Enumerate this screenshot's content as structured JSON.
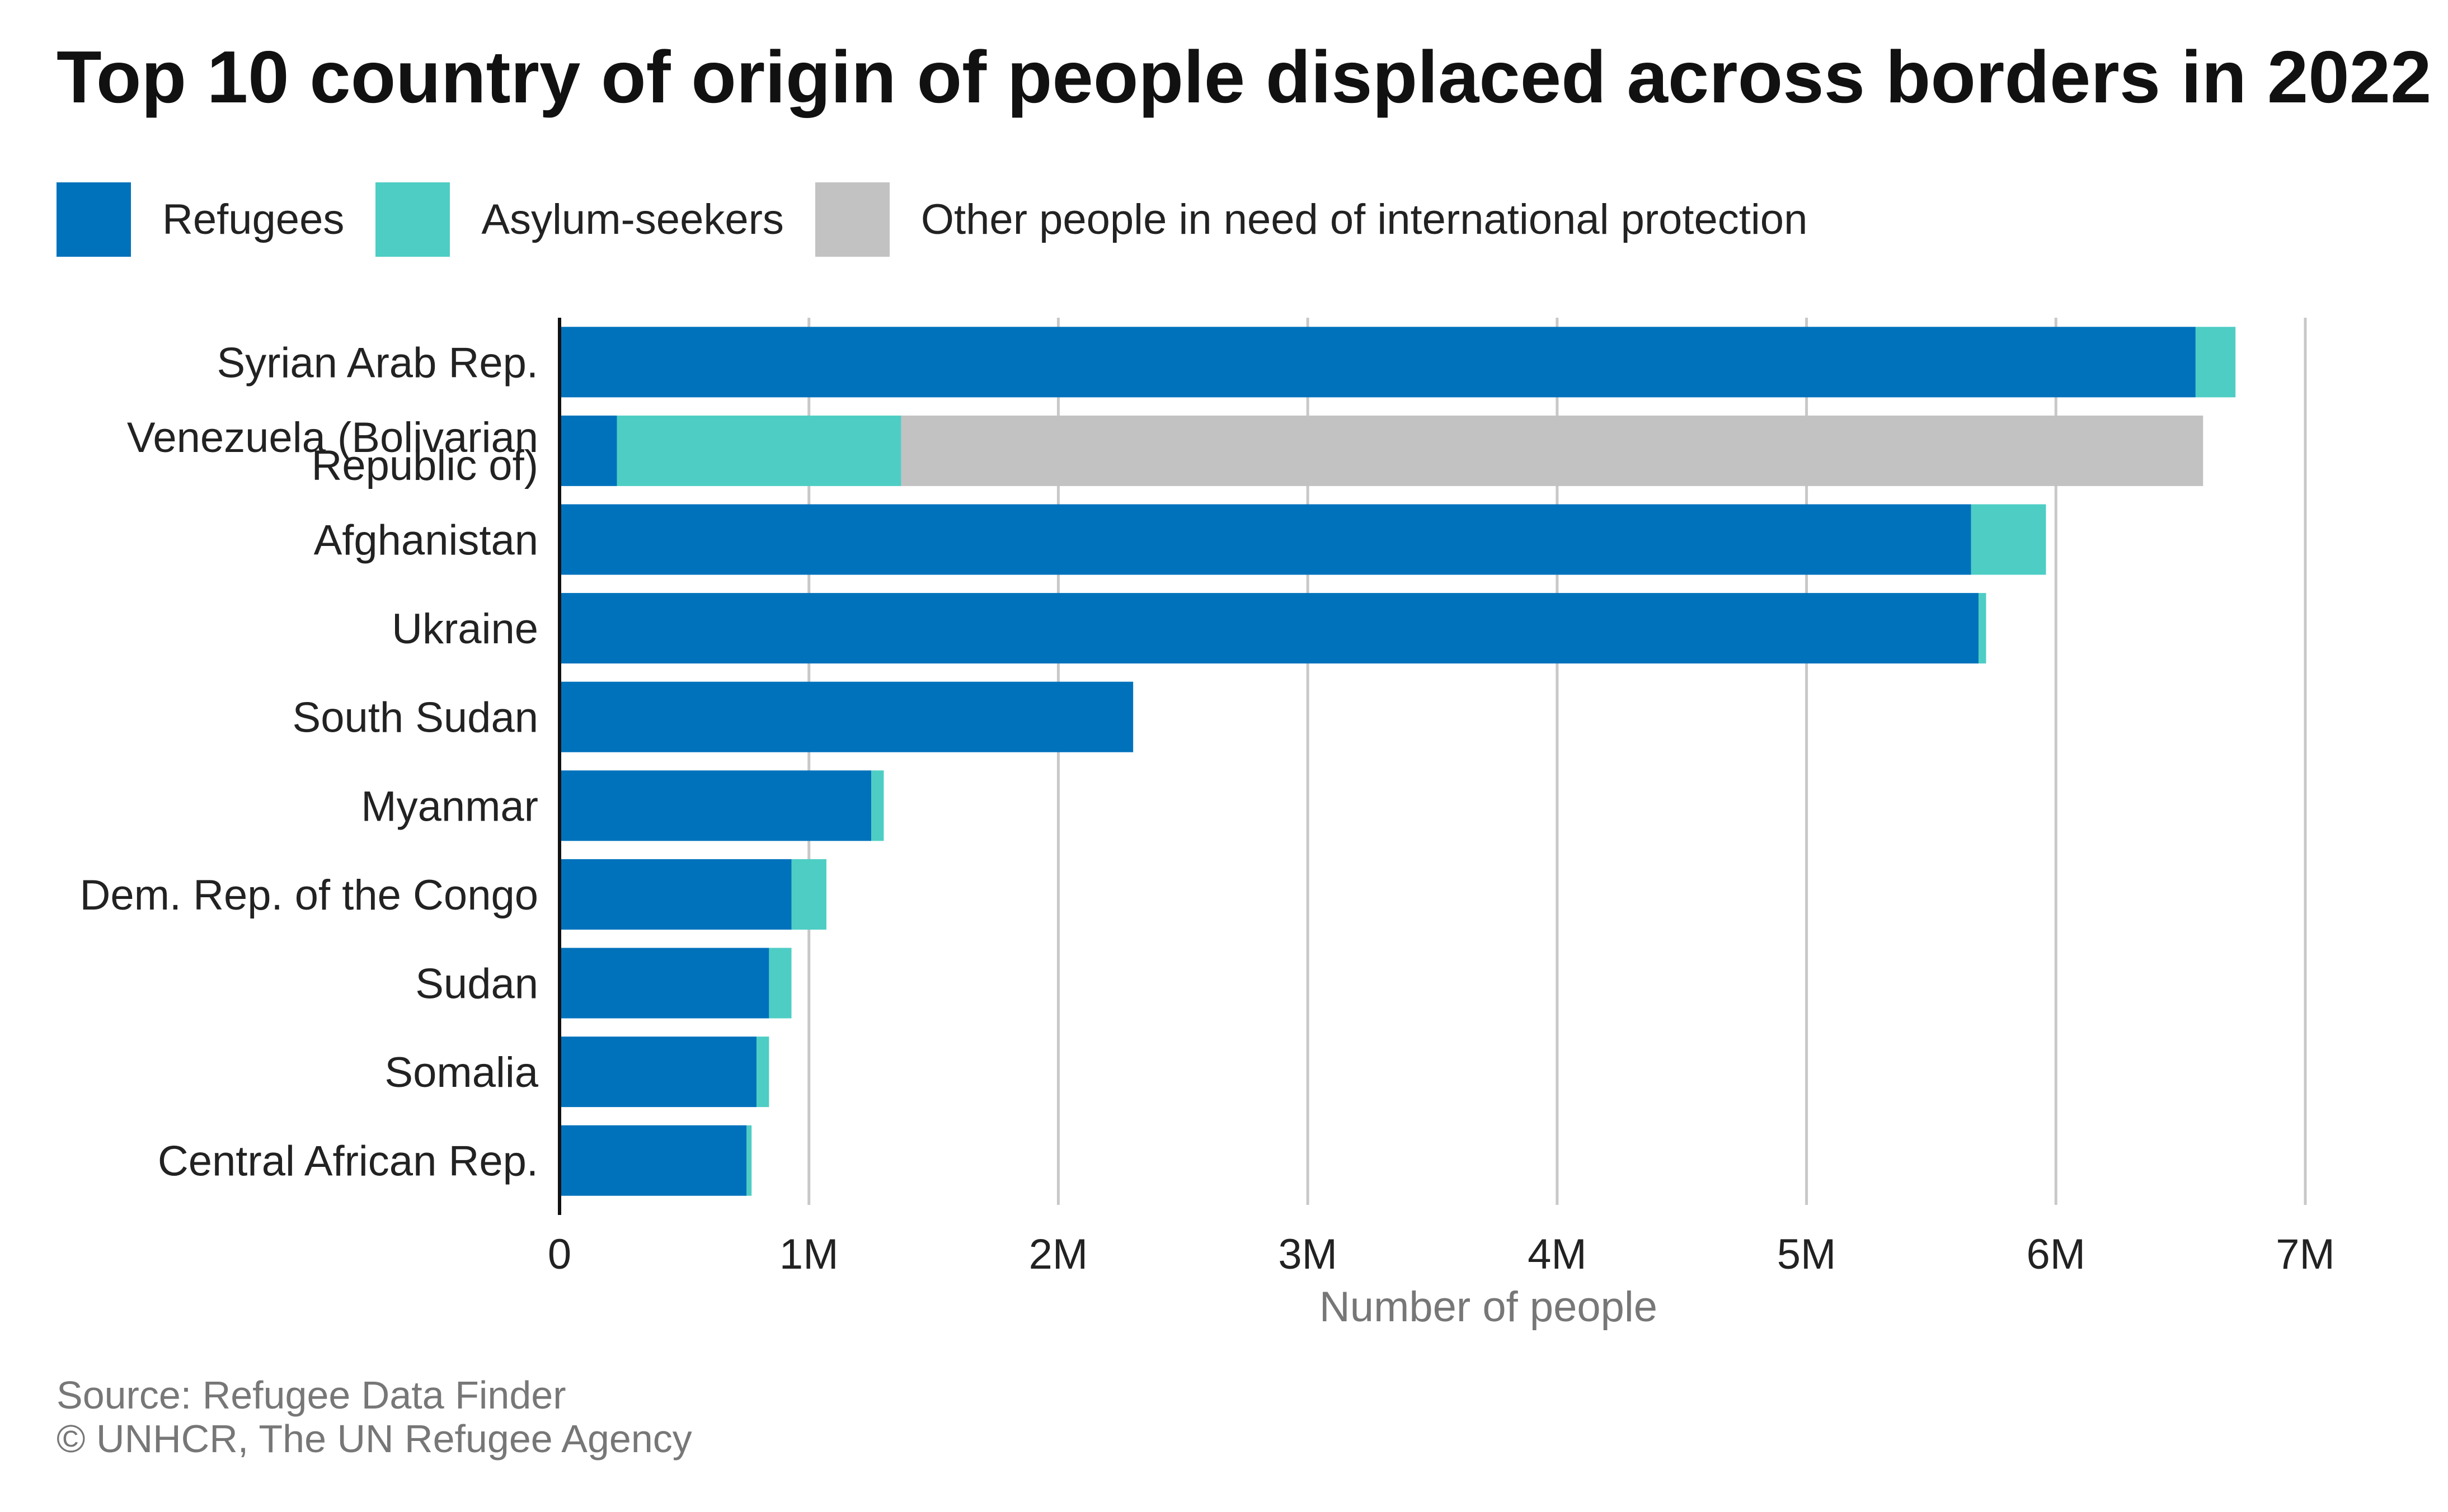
{
  "title": "Top 10 country of origin of people displaced across borders in 2022",
  "legend": [
    {
      "label": "Refugees",
      "color": "#0072bc"
    },
    {
      "label": "Asylum-seekers",
      "color": "#4ecdc4"
    },
    {
      "label": "Other people in need of international protection",
      "color": "#c2c2c2"
    }
  ],
  "footer": {
    "source": "Source: Refugee Data Finder",
    "copyright": "© UNHCR, The UN Refugee Agency"
  },
  "chart_data": {
    "type": "bar",
    "orientation": "horizontal",
    "stacked": true,
    "title": "Top 10 country of origin of people displaced across borders in 2022",
    "xlabel": "Number of people",
    "ylabel": "",
    "xlim": [
      0,
      7000000
    ],
    "x_ticks": [
      0,
      1000000,
      2000000,
      3000000,
      4000000,
      5000000,
      6000000,
      7000000
    ],
    "x_tick_labels": [
      "0",
      "1M",
      "2M",
      "3M",
      "4M",
      "5M",
      "6M",
      "7M"
    ],
    "grid": "vertical",
    "legend_position": "top-left",
    "categories": [
      [
        "Syrian Arab Rep."
      ],
      [
        "Venezuela (Bolivarian",
        "Republic of)"
      ],
      [
        "Afghanistan"
      ],
      [
        "Ukraine"
      ],
      [
        "South Sudan"
      ],
      [
        "Myanmar"
      ],
      [
        "Dem. Rep. of the Congo"
      ],
      [
        "Sudan"
      ],
      [
        "Somalia"
      ],
      [
        "Central African Rep."
      ]
    ],
    "series": [
      {
        "name": "Refugees",
        "color": "#0072bc",
        "values": [
          6560000,
          230000,
          5660000,
          5690000,
          2300000,
          1250000,
          930000,
          840000,
          790000,
          750000
        ]
      },
      {
        "name": "Asylum-seekers",
        "color": "#4ecdc4",
        "values": [
          160000,
          1140000,
          300000,
          30000,
          0,
          50000,
          140000,
          90000,
          50000,
          20000
        ]
      },
      {
        "name": "Other people in need of international protection",
        "color": "#c2c2c2",
        "values": [
          0,
          5220000,
          0,
          0,
          0,
          0,
          0,
          0,
          0,
          0
        ]
      }
    ]
  }
}
